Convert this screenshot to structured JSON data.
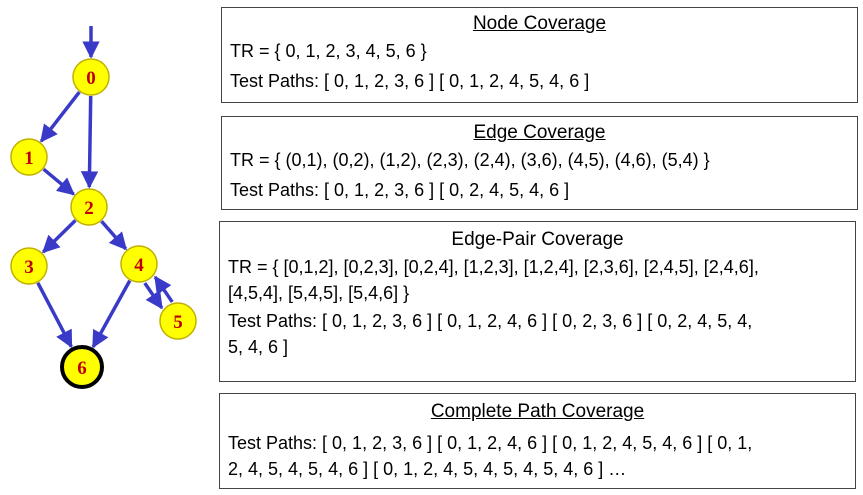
{
  "graph": {
    "colors": {
      "node_fill": "#ffff00",
      "node_stroke": "#c0b000",
      "label": "#c00000",
      "edge": "#3a3ac8"
    },
    "nodes": [
      {
        "id": "0",
        "label": "0",
        "initial": true
      },
      {
        "id": "1",
        "label": "1"
      },
      {
        "id": "2",
        "label": "2"
      },
      {
        "id": "3",
        "label": "3"
      },
      {
        "id": "4",
        "label": "4"
      },
      {
        "id": "5",
        "label": "5"
      },
      {
        "id": "6",
        "label": "6",
        "final": true
      }
    ],
    "edges": [
      [
        "0",
        "1"
      ],
      [
        "0",
        "2"
      ],
      [
        "1",
        "2"
      ],
      [
        "2",
        "3"
      ],
      [
        "2",
        "4"
      ],
      [
        "3",
        "6"
      ],
      [
        "4",
        "6"
      ],
      [
        "4",
        "5"
      ],
      [
        "5",
        "4"
      ]
    ]
  },
  "node_coverage": {
    "title": "Node Coverage",
    "tr": "TR = { 0, 1, 2, 3, 4, 5, 6 }",
    "test_paths": "Test Paths: [ 0, 1, 2, 3, 6 ] [ 0, 1, 2, 4, 5, 4, 6 ]"
  },
  "edge_coverage": {
    "title": "Edge Coverage",
    "tr": "TR = { (0,1), (0,2), (1,2), (2,3), (2,4), (3,6), (4,5), (4,6), (5,4) }",
    "test_paths": "Test Paths: [ 0, 1, 2, 3, 6 ] [ 0, 2, 4, 5, 4, 6 ]"
  },
  "edge_pair_coverage": {
    "title": "Edge-Pair Coverage",
    "tr_line1": "TR = { [0,1,2], [0,2,3], [0,2,4], [1,2,3], [1,2,4], [2,3,6], [2,4,5], [2,4,6],",
    "tr_line2": "[4,5,4], [5,4,5], [5,4,6] }",
    "test_paths_line1": "Test Paths: [ 0, 1, 2, 3, 6 ] [ 0, 1, 2, 4, 6 ] [ 0, 2, 3, 6 ] [ 0, 2, 4, 5, 4,",
    "test_paths_line2": "5, 4, 6 ]"
  },
  "complete_path_coverage": {
    "title": "Complete Path Coverage",
    "test_paths_line1": "Test Paths: [ 0, 1, 2, 3, 6 ] [ 0, 1, 2, 4, 6 ] [ 0, 1, 2, 4, 5, 4, 6 ] [ 0, 1,",
    "test_paths_line2": "2, 4, 5, 4, 5, 4, 6 ] [ 0, 1, 2, 4, 5, 4, 5, 4, 5, 4, 6 ] …"
  }
}
